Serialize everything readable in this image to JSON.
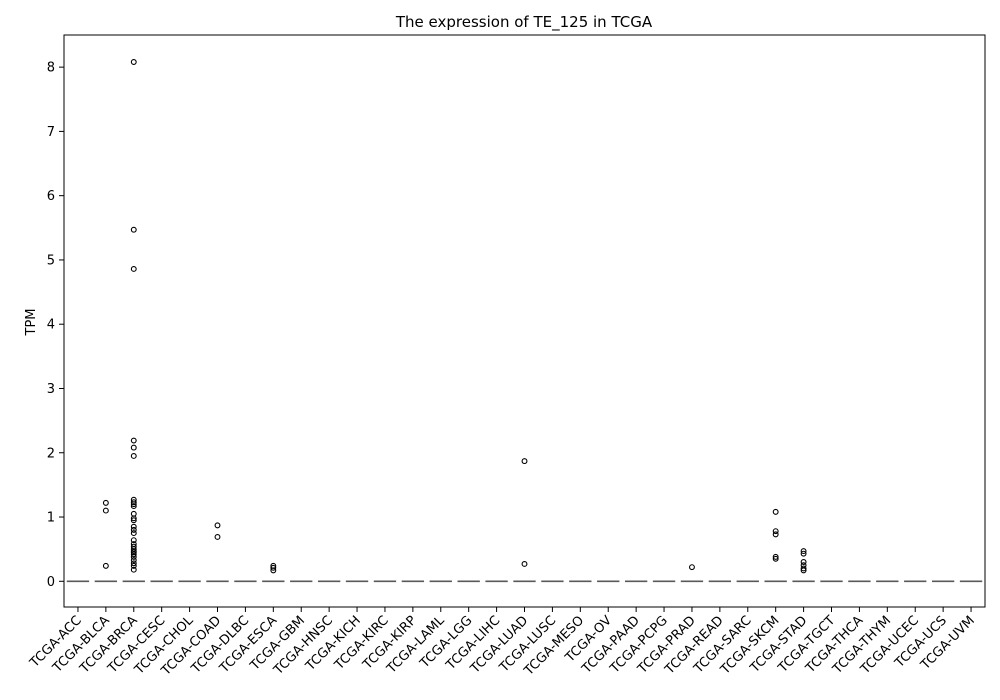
{
  "chart_data": {
    "type": "box",
    "title": "The expression of TE_125 in TCGA",
    "xlabel": "",
    "ylabel": "TPM",
    "ylim": [
      -0.4,
      8.5
    ],
    "yticks": [
      0,
      1,
      2,
      3,
      4,
      5,
      6,
      7,
      8
    ],
    "grid": false,
    "categories": [
      "TCGA-ACC",
      "TCGA-BLCA",
      "TCGA-BRCA",
      "TCGA-CESC",
      "TCGA-CHOL",
      "TCGA-COAD",
      "TCGA-DLBC",
      "TCGA-ESCA",
      "TCGA-GBM",
      "TCGA-HNSC",
      "TCGA-KICH",
      "TCGA-KIRC",
      "TCGA-KIRP",
      "TCGA-LAML",
      "TCGA-LGG",
      "TCGA-LIHC",
      "TCGA-LUAD",
      "TCGA-LUSC",
      "TCGA-MESO",
      "TCGA-OV",
      "TCGA-PAAD",
      "TCGA-PCPG",
      "TCGA-PRAD",
      "TCGA-READ",
      "TCGA-SARC",
      "TCGA-SKCM",
      "TCGA-STAD",
      "TCGA-TGCT",
      "TCGA-THCA",
      "TCGA-THYM",
      "TCGA-UCEC",
      "TCGA-UCS",
      "TCGA-UVM"
    ],
    "medians": [
      0,
      0,
      0,
      0,
      0,
      0,
      0,
      0,
      0,
      0,
      0,
      0,
      0,
      0,
      0,
      0,
      0,
      0,
      0,
      0,
      0,
      0,
      0,
      0,
      0,
      0,
      0,
      0,
      0,
      0,
      0,
      0,
      0
    ],
    "outliers": [
      [],
      [
        1.22,
        1.1,
        0.24
      ],
      [
        8.08,
        5.47,
        4.86,
        2.19,
        2.08,
        1.95,
        1.27,
        1.23,
        1.2,
        1.17,
        1.05,
        0.98,
        0.95,
        0.85,
        0.8,
        0.75,
        0.64,
        0.58,
        0.54,
        0.5,
        0.47,
        0.45,
        0.42,
        0.38,
        0.33,
        0.28,
        0.24,
        0.18
      ],
      [],
      [],
      [
        0.87,
        0.69
      ],
      [],
      [
        0.24,
        0.21,
        0.17
      ],
      [],
      [],
      [],
      [],
      [],
      [],
      [],
      [],
      [
        1.87,
        0.27
      ],
      [],
      [],
      [],
      [],
      [],
      [
        0.22
      ],
      [],
      [],
      [
        1.08,
        0.78,
        0.73,
        0.38,
        0.35
      ],
      [
        0.47,
        0.43,
        0.3,
        0.25,
        0.2,
        0.17
      ],
      [],
      [],
      [],
      [],
      [],
      []
    ]
  }
}
